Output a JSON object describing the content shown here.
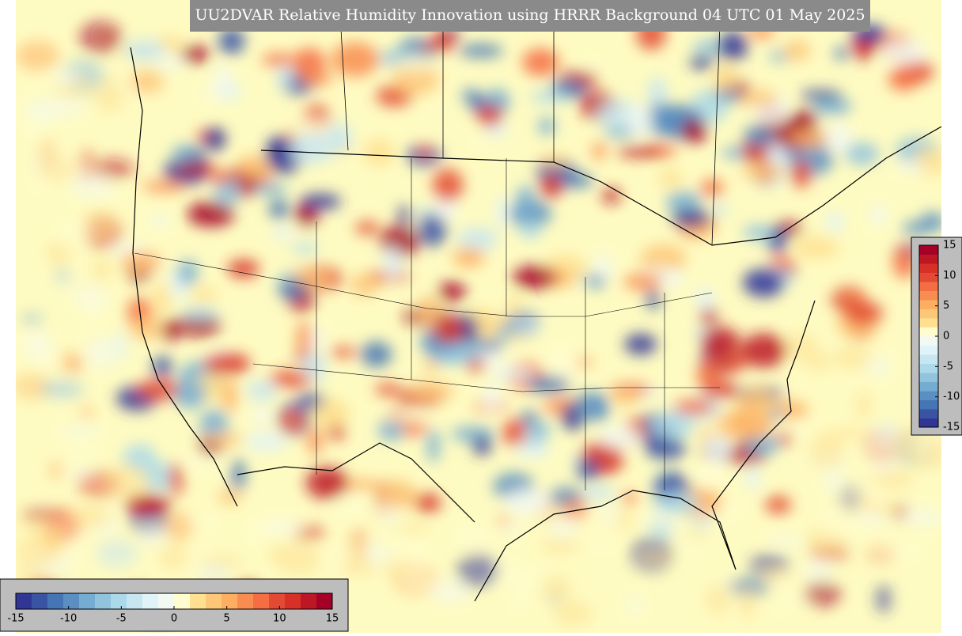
{
  "title": "UU2DVAR Relative Humidity Innovation using HRRR Background 04 UTC 01 May 2025",
  "colorbar": {
    "vlim": [
      -15,
      15
    ],
    "ticks": [
      -15,
      -10,
      -5,
      0,
      5,
      10,
      15
    ],
    "colors": [
      "#313695",
      "#3a54a4",
      "#4575b4",
      "#5b8fc2",
      "#74add1",
      "#91c3dd",
      "#abd9e9",
      "#c8e6f0",
      "#e0f3f8",
      "#f2f9f2",
      "#fffdd0",
      "#fee090",
      "#fdc779",
      "#fdae61",
      "#f88d52",
      "#f46d43",
      "#e34a33",
      "#d73027",
      "#bd1726",
      "#a50026"
    ]
  }
}
